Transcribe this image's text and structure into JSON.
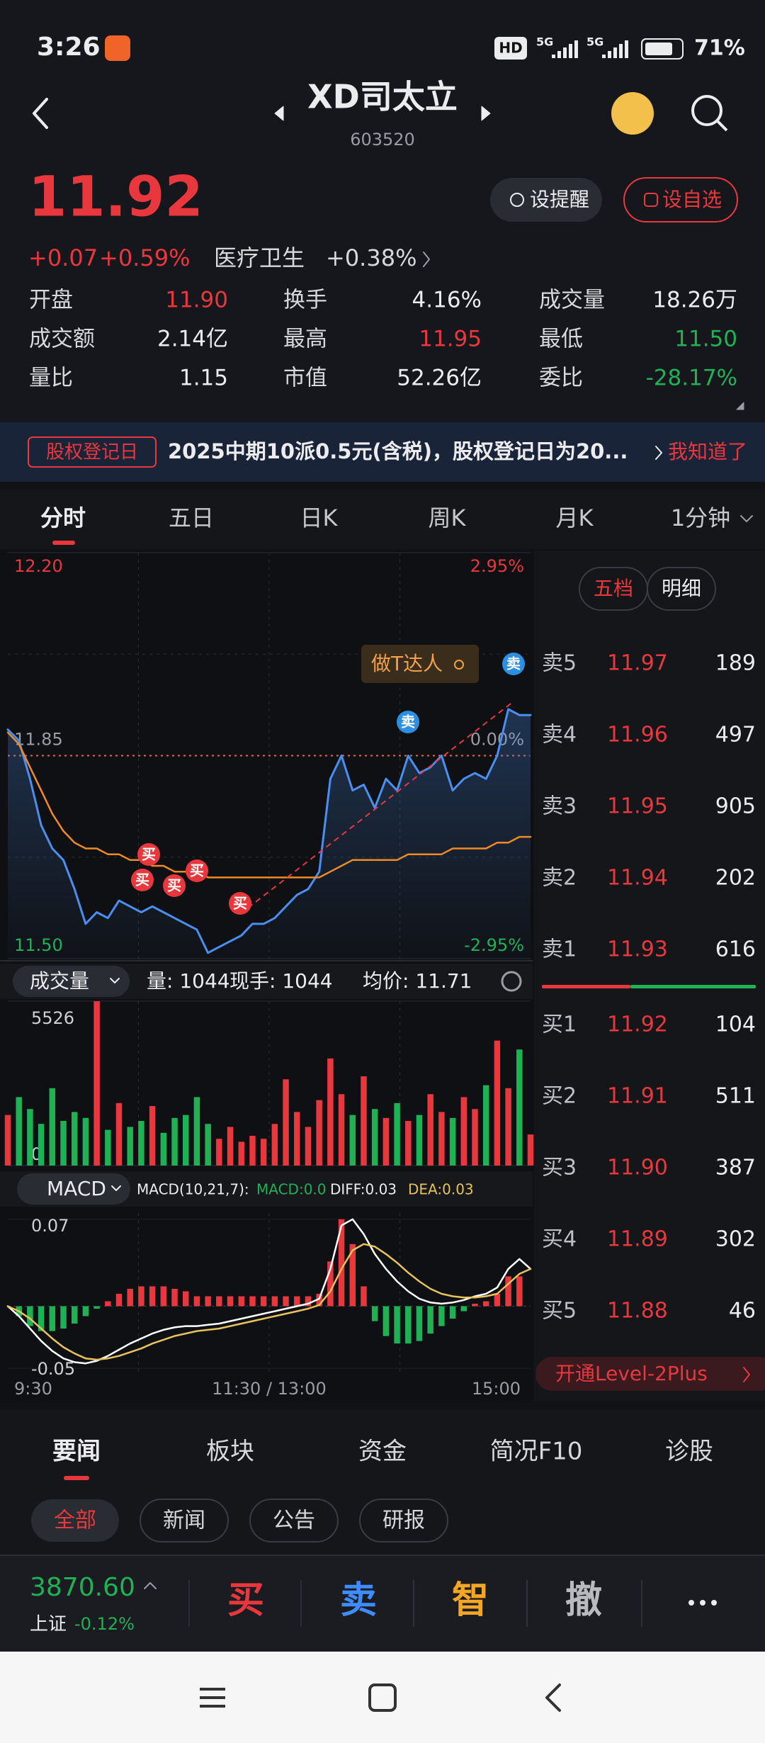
{
  "status_bar": {
    "time": "3:26",
    "network": [
      "HD",
      "5G",
      "5G"
    ],
    "battery": "71%"
  },
  "header": {
    "title": "XD司太立",
    "code": "603520"
  },
  "quote": {
    "price": "11.92",
    "change": "+0.07",
    "change_pct": "+0.59%",
    "sector": "医疗卫生",
    "sector_change": "+0.38%",
    "buttons": [
      "设提醒",
      "设自选"
    ],
    "stats": [
      [
        "开盘",
        "11.90"
      ],
      [
        "换手",
        "4.16%"
      ],
      [
        "成交量",
        "18.26万"
      ],
      [
        "成交额",
        "2.14亿"
      ],
      [
        "最高",
        "11.95"
      ],
      [
        "最低",
        "11.50"
      ],
      [
        "量比",
        "1.15"
      ],
      [
        "市值",
        "52.26亿"
      ],
      [
        "委比",
        "-28.17%"
      ]
    ]
  },
  "banner": {
    "tag": "股权登记日",
    "text": "2025中期10派0.5元(含税)，股权登记日为20...",
    "action": "我知道了"
  },
  "period_tabs": [
    "分时",
    "五日",
    "日K",
    "周K",
    "月K",
    "1分钟"
  ],
  "chart_data": [
    {
      "type": "line",
      "ylim": [
        11.5,
        12.2
      ],
      "yticks": [
        {
          "value": 12.2,
          "label": "12.20"
        },
        11.85,
        {
          "value": 11.5,
          "label": "11.50"
        }
      ],
      "y2lim": [
        -2.95,
        2.95
      ],
      "y2ticks": [
        {
          "value": 2.95,
          "label": "2.95%"
        },
        {
          "value": 0,
          "label": "0.00%"
        },
        {
          "value": -2.95,
          "label": "-2.95%"
        }
      ],
      "series": [
        {
          "color": "#4a8ff0",
          "values": [
            11.895,
            11.876,
            11.81,
            11.73,
            11.69,
            11.67,
            11.62,
            11.56,
            11.58,
            11.57,
            11.6,
            11.59,
            11.58,
            11.59,
            11.58,
            11.57,
            11.56,
            11.55,
            11.51,
            11.52,
            11.53,
            11.54,
            11.56,
            11.56,
            11.57,
            11.59,
            11.61,
            11.62,
            11.65,
            11.81,
            11.85,
            11.79,
            11.8,
            11.76,
            11.81,
            11.79,
            11.85,
            11.82,
            11.83,
            11.85,
            11.79,
            11.81,
            11.82,
            11.81,
            11.85,
            11.93,
            11.92,
            11.92
          ]
        },
        {
          "color": "#f08a24",
          "values": [
            11.89,
            11.87,
            11.83,
            11.79,
            11.75,
            11.72,
            11.7,
            11.69,
            11.69,
            11.68,
            11.68,
            11.67,
            11.67,
            11.66,
            11.66,
            11.65,
            11.65,
            11.65,
            11.64,
            11.64,
            11.64,
            11.64,
            11.64,
            11.64,
            11.64,
            11.64,
            11.64,
            11.64,
            11.64,
            11.65,
            11.66,
            11.67,
            11.67,
            11.67,
            11.67,
            11.67,
            11.68,
            11.68,
            11.68,
            11.68,
            11.69,
            11.69,
            11.69,
            11.69,
            11.7,
            11.7,
            11.71,
            11.71
          ]
        }
      ],
      "badge": "做T达人",
      "markers": [
        "买",
        "买",
        "买",
        "买",
        "买",
        "卖",
        "卖"
      ],
      "x_labels": [
        "9:30",
        "11:30 / 13:00",
        "15:00"
      ]
    },
    {
      "type": "bar",
      "ylim": [
        0,
        5526
      ],
      "yticks": [
        0,
        5526
      ],
      "up_color": "#e8383d",
      "down_color": "#1fb254",
      "values": [
        1700,
        2300,
        1900,
        1400,
        2600,
        1500,
        1800,
        1600,
        5526,
        1200,
        2100,
        1300,
        1500,
        2000,
        1100,
        1600,
        1700,
        2300,
        1400,
        900,
        1300,
        800,
        1000,
        900,
        1400,
        2900,
        1800,
        1300,
        2200,
        3600,
        2400,
        1700,
        3000,
        1900,
        1600,
        2100,
        1500,
        1700,
        2400,
        1800,
        1600,
        2300,
        1900,
        2700,
        4200,
        2600,
        3900,
        1044
      ],
      "indicator": "成交量",
      "readout": [
        "量: 1044",
        "现手: 1044",
        "均价: 11.71"
      ]
    },
    {
      "type": "macd",
      "ylim": [
        -0.055,
        0.075
      ],
      "yticks": [
        0.07,
        -0.05
      ],
      "up_color": "#e8383d",
      "down_color": "#1fb254",
      "values": [
        0,
        -0.008,
        -0.016,
        -0.02,
        -0.02,
        -0.018,
        -0.014,
        -0.008,
        -0.002,
        0.004,
        0.01,
        0.014,
        0.016,
        0.016,
        0.016,
        0.014,
        0.012,
        0.008,
        0.008,
        0.008,
        0.008,
        0.008,
        0.008,
        0.008,
        0.008,
        0.008,
        0.008,
        0.008,
        0.01,
        0.036,
        0.07,
        0.05,
        0.016,
        -0.012,
        -0.024,
        -0.03,
        -0.03,
        -0.028,
        -0.022,
        -0.016,
        -0.01,
        -0.004,
        0.002,
        0.004,
        0.01,
        0.024,
        0.024,
        0
      ],
      "series": [
        {
          "color": "#ffffff",
          "values": [
            0,
            -0.008,
            -0.018,
            -0.028,
            -0.036,
            -0.042,
            -0.045,
            -0.046,
            -0.044,
            -0.04,
            -0.035,
            -0.03,
            -0.026,
            -0.022,
            -0.019,
            -0.017,
            -0.016,
            -0.016,
            -0.015,
            -0.014,
            -0.012,
            -0.01,
            -0.008,
            -0.006,
            -0.004,
            -0.002,
            0,
            0.002,
            0.006,
            0.03,
            0.065,
            0.07,
            0.058,
            0.042,
            0.03,
            0.02,
            0.012,
            0.006,
            0.003,
            0.002,
            0.003,
            0.005,
            0.008,
            0.01,
            0.015,
            0.03,
            0.038,
            0.03
          ]
        },
        {
          "color": "#e8c25a",
          "values": [
            0,
            -0.004,
            -0.01,
            -0.018,
            -0.026,
            -0.033,
            -0.038,
            -0.042,
            -0.043,
            -0.042,
            -0.04,
            -0.037,
            -0.034,
            -0.03,
            -0.027,
            -0.024,
            -0.022,
            -0.02,
            -0.019,
            -0.018,
            -0.016,
            -0.014,
            -0.012,
            -0.01,
            -0.008,
            -0.006,
            -0.004,
            -0.002,
            0.001,
            0.012,
            0.03,
            0.045,
            0.05,
            0.048,
            0.042,
            0.035,
            0.027,
            0.02,
            0.014,
            0.01,
            0.008,
            0.007,
            0.007,
            0.008,
            0.01,
            0.018,
            0.026,
            0.03
          ]
        }
      ],
      "indicator": "MACD",
      "params": "MACD(10,21,7):",
      "readout": [
        "MACD:0.0",
        "DIFF:0.03",
        "DEA:0.03"
      ]
    }
  ],
  "order_book": {
    "tabs": [
      "五档",
      "明细"
    ],
    "asks": [
      [
        "卖5",
        "11.97",
        "189"
      ],
      [
        "卖4",
        "11.96",
        "497"
      ],
      [
        "卖3",
        "11.95",
        "905"
      ],
      [
        "卖2",
        "11.94",
        "202"
      ],
      [
        "卖1",
        "11.93",
        "616"
      ]
    ],
    "bids": [
      [
        "买1",
        "11.92",
        "104"
      ],
      [
        "买2",
        "11.91",
        "511"
      ],
      [
        "买3",
        "11.90",
        "387"
      ],
      [
        "买4",
        "11.89",
        "302"
      ],
      [
        "买5",
        "11.88",
        "46"
      ]
    ],
    "upgrade": "开通Level-2Plus"
  },
  "news_tabs": [
    "要闻",
    "板块",
    "资金",
    "简况F10",
    "诊股"
  ],
  "filters": [
    "全部",
    "新闻",
    "公告",
    "研报"
  ],
  "bottom_bar": {
    "index_value": "3870.60",
    "index_name": "上证",
    "index_change": "-0.12%",
    "actions": [
      "买",
      "卖",
      "智",
      "撤"
    ]
  }
}
